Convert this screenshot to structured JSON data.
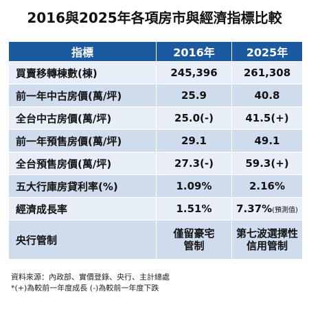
{
  "title": "2016與2025年各項房市與經濟指標比較",
  "table": {
    "headers": [
      "指標",
      "2016年",
      "2025年"
    ],
    "rows": [
      {
        "label": "買賣移轉棟數(棟)",
        "v2016": "245,396",
        "v2025": "261,308"
      },
      {
        "label": "前一年中古房價(萬/坪)",
        "v2016": "25.9",
        "v2025": "40.8"
      },
      {
        "label": "全台中古房價(萬/坪)",
        "v2016": "25.0(-)",
        "v2025": "41.5(+)"
      },
      {
        "label": "前一年預售房價(萬/坪)",
        "v2016": "29.1",
        "v2025": "49.1"
      },
      {
        "label": "全台預售房價(萬/坪)",
        "v2016": "27.3(-)",
        "v2025": "59.3(+)"
      },
      {
        "label": "五大行庫房貸利率(%)",
        "v2016": "1.09%",
        "v2025": "2.16%"
      },
      {
        "label": "經濟成長率",
        "v2016": "1.51%",
        "v2025": "7.37%",
        "v2025_note": "(預測值)"
      },
      {
        "label": "央行管制",
        "v2016_line1": "僅留豪宅",
        "v2016_line2": "管制",
        "v2025_line1": "第七波選擇性",
        "v2025_line2": "信用管制"
      }
    ]
  },
  "notes": {
    "source": "資料來源：內政部、實價登錄、央行、主計總處",
    "footnote": "*(+)為較前一年度成長 (-)為較前一年度下跌"
  }
}
